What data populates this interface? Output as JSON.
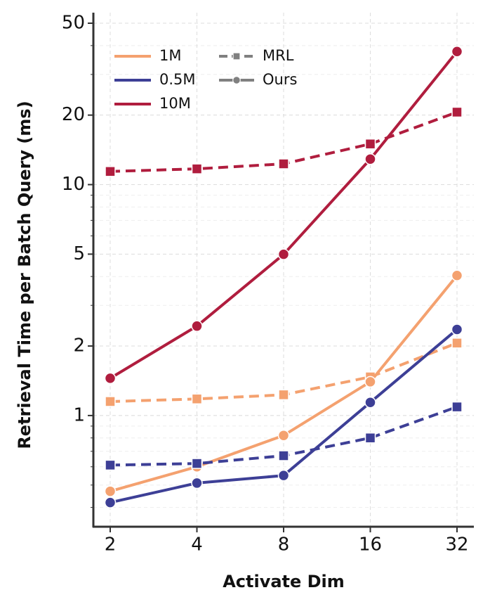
{
  "chart_data": {
    "type": "line",
    "xlabel": "Activate Dim",
    "ylabel": "Retrieval Time per Batch Query (ms)",
    "categories": [
      "2",
      "4",
      "8",
      "16",
      "32"
    ],
    "ylim": [
      0.33,
      50
    ],
    "yscale": "log",
    "yticks": [
      1,
      2,
      5,
      10,
      20,
      50
    ],
    "grid": true,
    "legend": {
      "position": "upper left",
      "groups": [
        {
          "name": "1M",
          "color": "#f4a16f"
        },
        {
          "name": "0.5M",
          "color": "#3d3f96"
        },
        {
          "name": "10M",
          "color": "#b01d3e"
        }
      ],
      "styles": [
        {
          "name": "MRL",
          "linestyle": "dashed",
          "marker": "square"
        },
        {
          "name": "Ours",
          "linestyle": "solid",
          "marker": "circle"
        }
      ]
    },
    "series": [
      {
        "group": "10M",
        "style": "MRL",
        "values": [
          11.4,
          11.7,
          12.3,
          15.0,
          20.6
        ]
      },
      {
        "group": "10M",
        "style": "Ours",
        "values": [
          1.45,
          2.44,
          4.99,
          12.9,
          37.7
        ]
      },
      {
        "group": "1M",
        "style": "MRL",
        "values": [
          1.15,
          1.18,
          1.23,
          1.47,
          2.06
        ]
      },
      {
        "group": "1M",
        "style": "Ours",
        "values": [
          0.47,
          0.6,
          0.82,
          1.4,
          4.04
        ]
      },
      {
        "group": "0.5M",
        "style": "MRL",
        "values": [
          0.61,
          0.62,
          0.67,
          0.8,
          1.09
        ]
      },
      {
        "group": "0.5M",
        "style": "Ours",
        "values": [
          0.42,
          0.51,
          0.55,
          1.14,
          2.36
        ]
      }
    ]
  }
}
